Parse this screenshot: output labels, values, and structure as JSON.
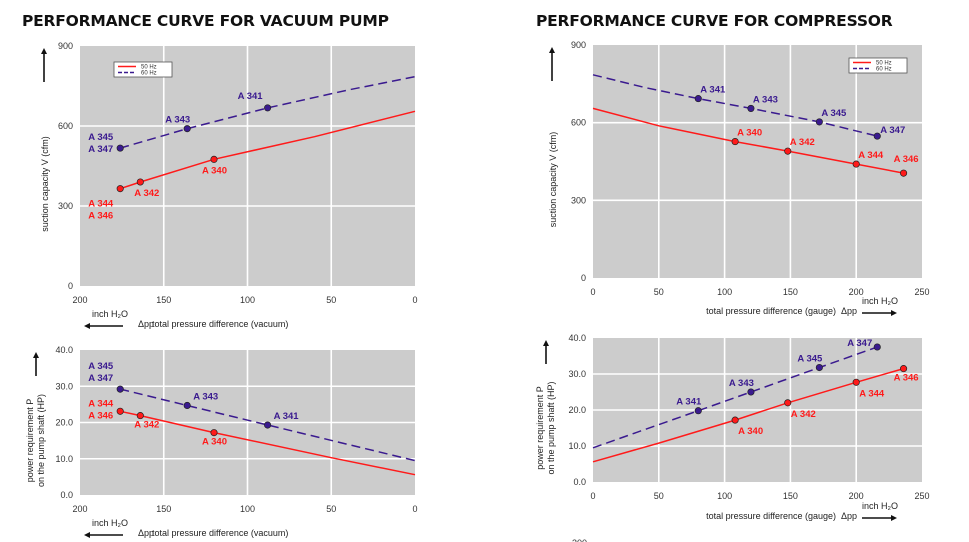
{
  "titles": {
    "left": "PERFORMANCE CURVE FOR VACUUM PUMP",
    "right": "PERFORMANCE CURVE FOR COMPRESSOR"
  },
  "colors": {
    "hz50": "#ff1a1a",
    "hz60": "#3a1a8f",
    "plot_bg": "#cccccc",
    "grid": "#ffffff"
  },
  "chart_data": [
    {
      "id": "vacuum-capacity",
      "type": "line",
      "title": "PERFORMANCE CURVE FOR VACUUM PUMP",
      "ylabel": "suction capacity V (cfm)",
      "xlabel": "total pressure difference (vacuum)",
      "xunit": "inch H2O",
      "xsymbol": "Δp",
      "xlim": [
        200,
        0
      ],
      "ylim": [
        0,
        900
      ],
      "xticks": [
        "200",
        "150",
        "100",
        "50",
        "0"
      ],
      "xtick_values": [
        200,
        150,
        100,
        50,
        0
      ],
      "yticks": [
        "0",
        "300",
        "600",
        "900"
      ],
      "ytick_values": [
        0,
        300,
        600,
        900
      ],
      "grid": true,
      "legend": "top-left",
      "series": [
        {
          "name": "50 Hz",
          "style": "solid",
          "curve": [
            [
              176,
              365
            ],
            [
              164,
              390
            ],
            [
              120,
              475
            ],
            [
              60,
              560
            ],
            [
              0,
              655
            ]
          ],
          "points": [
            {
              "x": 176,
              "y": 365,
              "labels": [
                "A 344",
                "A 346"
              ]
            },
            {
              "x": 164,
              "y": 390,
              "labels": [
                "A 342"
              ]
            },
            {
              "x": 120,
              "y": 475,
              "labels": [
                "A 340"
              ]
            }
          ]
        },
        {
          "name": "60 Hz",
          "style": "dashed",
          "curve": [
            [
              176,
              517
            ],
            [
              136,
              590
            ],
            [
              88,
              668
            ],
            [
              40,
              735
            ],
            [
              0,
              785
            ]
          ],
          "points": [
            {
              "x": 176,
              "y": 517,
              "labels": [
                "A 345",
                "A 347"
              ]
            },
            {
              "x": 136,
              "y": 590,
              "labels": [
                "A 343"
              ]
            },
            {
              "x": 88,
              "y": 668,
              "labels": [
                "A 341"
              ]
            }
          ]
        }
      ]
    },
    {
      "id": "vacuum-power",
      "type": "line",
      "ylabel": "power requirement P on the pump shaft (HP)",
      "xlabel": "total pressure difference (vacuum)",
      "xunit": "inch H2O",
      "xsymbol": "Δp",
      "xlim": [
        200,
        0
      ],
      "ylim": [
        0,
        40
      ],
      "xticks": [
        "200",
        "150",
        "100",
        "50",
        "0"
      ],
      "xtick_values": [
        200,
        150,
        100,
        50,
        0
      ],
      "yticks": [
        "0.0",
        "10.0",
        "20.0",
        "30.0",
        "40.0"
      ],
      "ytick_values": [
        0,
        10,
        20,
        30,
        40
      ],
      "grid": true,
      "series": [
        {
          "name": "50 Hz",
          "style": "solid",
          "curve": [
            [
              176,
              23.1
            ],
            [
              164,
              21.9
            ],
            [
              120,
              17.2
            ],
            [
              50,
              10.3
            ],
            [
              0,
              5.6
            ]
          ],
          "points": [
            {
              "x": 176,
              "y": 23.1,
              "labels": [
                "A 344",
                "A 346"
              ]
            },
            {
              "x": 164,
              "y": 21.9,
              "labels": [
                "A 342"
              ]
            },
            {
              "x": 120,
              "y": 17.2,
              "labels": [
                "A 340"
              ]
            }
          ]
        },
        {
          "name": "60 Hz",
          "style": "dashed",
          "curve": [
            [
              176,
              29.2
            ],
            [
              136,
              24.7
            ],
            [
              88,
              19.3
            ],
            [
              0,
              9.5
            ]
          ],
          "points": [
            {
              "x": 176,
              "y": 29.2,
              "labels": [
                "A 345",
                "A 347"
              ]
            },
            {
              "x": 136,
              "y": 24.7,
              "labels": [
                "A 343"
              ]
            },
            {
              "x": 88,
              "y": 19.3,
              "labels": [
                "A 341"
              ]
            }
          ]
        }
      ]
    },
    {
      "id": "compressor-capacity",
      "type": "line",
      "title": "PERFORMANCE CURVE FOR COMPRESSOR",
      "ylabel": "suction capacity V (cfm)",
      "xlabel": "total pressure difference (gauge)",
      "xunit": "inch H2O",
      "xsymbol": "Δp",
      "xlim": [
        0,
        250
      ],
      "ylim": [
        0,
        900
      ],
      "xticks": [
        "0",
        "50",
        "100",
        "150",
        "200",
        "250"
      ],
      "xtick_values": [
        0,
        50,
        100,
        150,
        200,
        250
      ],
      "yticks": [
        "0",
        "300",
        "600",
        "900"
      ],
      "ytick_values": [
        0,
        300,
        600,
        900
      ],
      "grid": true,
      "legend": "top-right",
      "series": [
        {
          "name": "50 Hz",
          "style": "solid",
          "curve": [
            [
              0,
              655
            ],
            [
              50,
              588
            ],
            [
              108,
              527
            ],
            [
              148,
              490
            ],
            [
              200,
              440
            ],
            [
              236,
              405
            ]
          ],
          "points": [
            {
              "x": 108,
              "y": 527,
              "labels": [
                "A 340"
              ]
            },
            {
              "x": 148,
              "y": 490,
              "labels": [
                "A 342"
              ]
            },
            {
              "x": 200,
              "y": 440,
              "labels": [
                "A 344"
              ]
            },
            {
              "x": 236,
              "y": 405,
              "labels": [
                "A 346"
              ]
            }
          ]
        },
        {
          "name": "60 Hz",
          "style": "dashed",
          "curve": [
            [
              0,
              785
            ],
            [
              40,
              735
            ],
            [
              80,
              693
            ],
            [
              120,
              655
            ],
            [
              172,
              603
            ],
            [
              216,
              548
            ]
          ],
          "points": [
            {
              "x": 80,
              "y": 693,
              "labels": [
                "A 341"
              ]
            },
            {
              "x": 120,
              "y": 655,
              "labels": [
                "A 343"
              ]
            },
            {
              "x": 172,
              "y": 603,
              "labels": [
                "A 345"
              ]
            },
            {
              "x": 216,
              "y": 548,
              "labels": [
                "A 347"
              ]
            }
          ]
        }
      ]
    },
    {
      "id": "compressor-power",
      "type": "line",
      "ylabel": "power requirement P on the pump shaft (HP)",
      "xlabel": "total pressure difference (gauge)",
      "xunit": "inch H2O",
      "xsymbol": "Δp",
      "xlim": [
        0,
        250
      ],
      "ylim": [
        0,
        40
      ],
      "xticks": [
        "0",
        "50",
        "100",
        "150",
        "200",
        "250"
      ],
      "xtick_values": [
        0,
        50,
        100,
        150,
        200,
        250
      ],
      "yticks": [
        "0.0",
        "10.0",
        "20.0",
        "30.0",
        "40.0"
      ],
      "ytick_values": [
        0,
        10,
        20,
        30,
        40
      ],
      "grid": true,
      "series": [
        {
          "name": "50 Hz",
          "style": "solid",
          "curve": [
            [
              0,
              5.6
            ],
            [
              50,
              10.8
            ],
            [
              108,
              17.2
            ],
            [
              148,
              22.0
            ],
            [
              200,
              27.7
            ],
            [
              236,
              31.5
            ]
          ],
          "points": [
            {
              "x": 108,
              "y": 17.2,
              "labels": [
                "A 340"
              ]
            },
            {
              "x": 148,
              "y": 22.0,
              "labels": [
                "A 342"
              ]
            },
            {
              "x": 200,
              "y": 27.7,
              "labels": [
                "A 344"
              ]
            },
            {
              "x": 236,
              "y": 31.5,
              "labels": [
                "A 346"
              ]
            }
          ]
        },
        {
          "name": "60 Hz",
          "style": "dashed",
          "curve": [
            [
              0,
              9.5
            ],
            [
              80,
              19.8
            ],
            [
              120,
              25.0
            ],
            [
              172,
              31.8
            ],
            [
              216,
              37.5
            ]
          ],
          "points": [
            {
              "x": 80,
              "y": 19.8,
              "labels": [
                "A 341"
              ]
            },
            {
              "x": 120,
              "y": 25.0,
              "labels": [
                "A 343"
              ]
            },
            {
              "x": 172,
              "y": 31.8,
              "labels": [
                "A 345"
              ]
            },
            {
              "x": 216,
              "y": 37.5,
              "labels": [
                "A 347"
              ]
            }
          ]
        }
      ]
    }
  ],
  "legend": {
    "items": [
      "50 Hz",
      "60 Hz"
    ]
  },
  "footer_fragment": "300"
}
